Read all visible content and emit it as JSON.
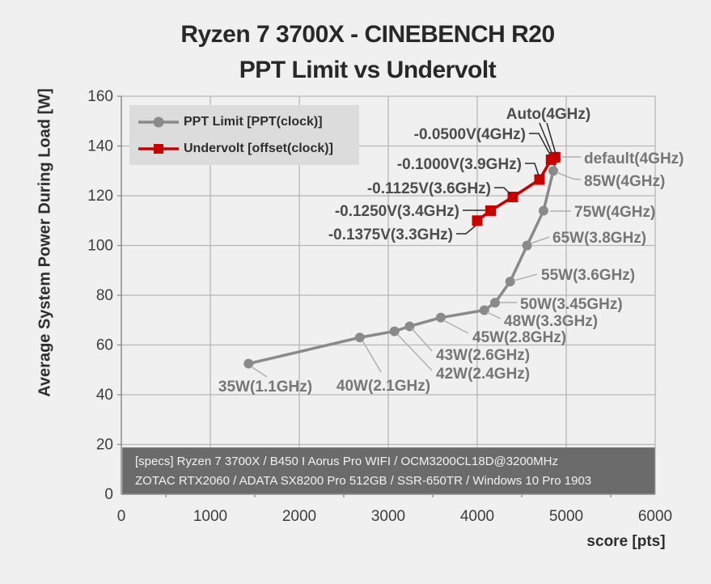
{
  "header": {
    "title_line1": "Ryzen 7 3700X - CINEBENCH R20",
    "title_line2": "PPT Limit vs Undervolt"
  },
  "chart_data": {
    "type": "line",
    "title": "Ryzen 7 3700X - CINEBENCH R20 / PPT Limit vs Undervolt",
    "xlabel": "score [pts]",
    "ylabel": "Average System Power During Load [W]",
    "xlim": [
      0,
      6000
    ],
    "ylim": [
      0,
      160
    ],
    "x_ticks": [
      0,
      1000,
      2000,
      3000,
      4000,
      5000,
      6000
    ],
    "y_ticks": [
      0,
      20,
      40,
      60,
      80,
      100,
      120,
      140,
      160
    ],
    "grid": true,
    "legend_position": "top-left",
    "series": [
      {
        "name": "PPT Limit [PPT(clock)]",
        "color": "#8a8a8a",
        "marker": "circle",
        "label_color": "#767676",
        "leader_color": "#b0b0b0",
        "points": [
          {
            "label": "35W(1.1GHz)",
            "score": 1430,
            "watts": 52.5
          },
          {
            "label": "40W(2.1GHz)",
            "score": 2680,
            "watts": 63
          },
          {
            "label": "42W(2.4GHz)",
            "score": 3070,
            "watts": 65.5
          },
          {
            "label": "43W(2.6GHz)",
            "score": 3240,
            "watts": 67.5
          },
          {
            "label": "45W(2.8GHz)",
            "score": 3590,
            "watts": 71
          },
          {
            "label": "48W(3.3GHz)",
            "score": 4080,
            "watts": 74
          },
          {
            "label": "50W(3.45GHz)",
            "score": 4200,
            "watts": 77
          },
          {
            "label": "55W(3.6GHz)",
            "score": 4370,
            "watts": 85.5
          },
          {
            "label": "65W(3.8GHz)",
            "score": 4560,
            "watts": 100
          },
          {
            "label": "75W(4GHz)",
            "score": 4745,
            "watts": 114
          },
          {
            "label": "85W(4GHz)",
            "score": 4855,
            "watts": 130
          },
          {
            "label": "default(4GHz)",
            "score": 4885,
            "watts": 135
          }
        ]
      },
      {
        "name": "Undervolt [offset(clock)]",
        "color": "#c80000",
        "marker": "square",
        "label_color": "#4d4d4d",
        "leader_color": "#2b2b2b",
        "points": [
          {
            "label": "-0.1375V(3.3GHz)",
            "score": 4000,
            "watts": 110
          },
          {
            "label": "-0.1250V(3.4GHz)",
            "score": 4150,
            "watts": 114
          },
          {
            "label": "-0.1125V(3.6GHz)",
            "score": 4400,
            "watts": 119.5
          },
          {
            "label": "-0.1000V(3.9GHz)",
            "score": 4700,
            "watts": 126.5
          },
          {
            "label": "-0.0500V(4GHz)",
            "score": 4830,
            "watts": 134.5
          },
          {
            "label": "Auto(4GHz)",
            "score": 4875,
            "watts": 135.5
          }
        ]
      }
    ],
    "specs": [
      "[specs] Ryzen 7 3700X / B450 I Aorus Pro WIFI / OCM3200CL18D@3200MHz",
      "ZOTAC RTX2060 / ADATA SX8200 Pro 512GB / SSR-650TR / Windows 10 Pro 1903"
    ],
    "colors": {
      "background": "#f0f0f0",
      "gridline": "#b7b7b7",
      "axis": "#8c8c8c",
      "tick_label": "#3d3d3d",
      "legend_background": "#dcdcdc",
      "specs_background": "#6b6b6b",
      "specs_text": "#f2f2f2"
    }
  }
}
